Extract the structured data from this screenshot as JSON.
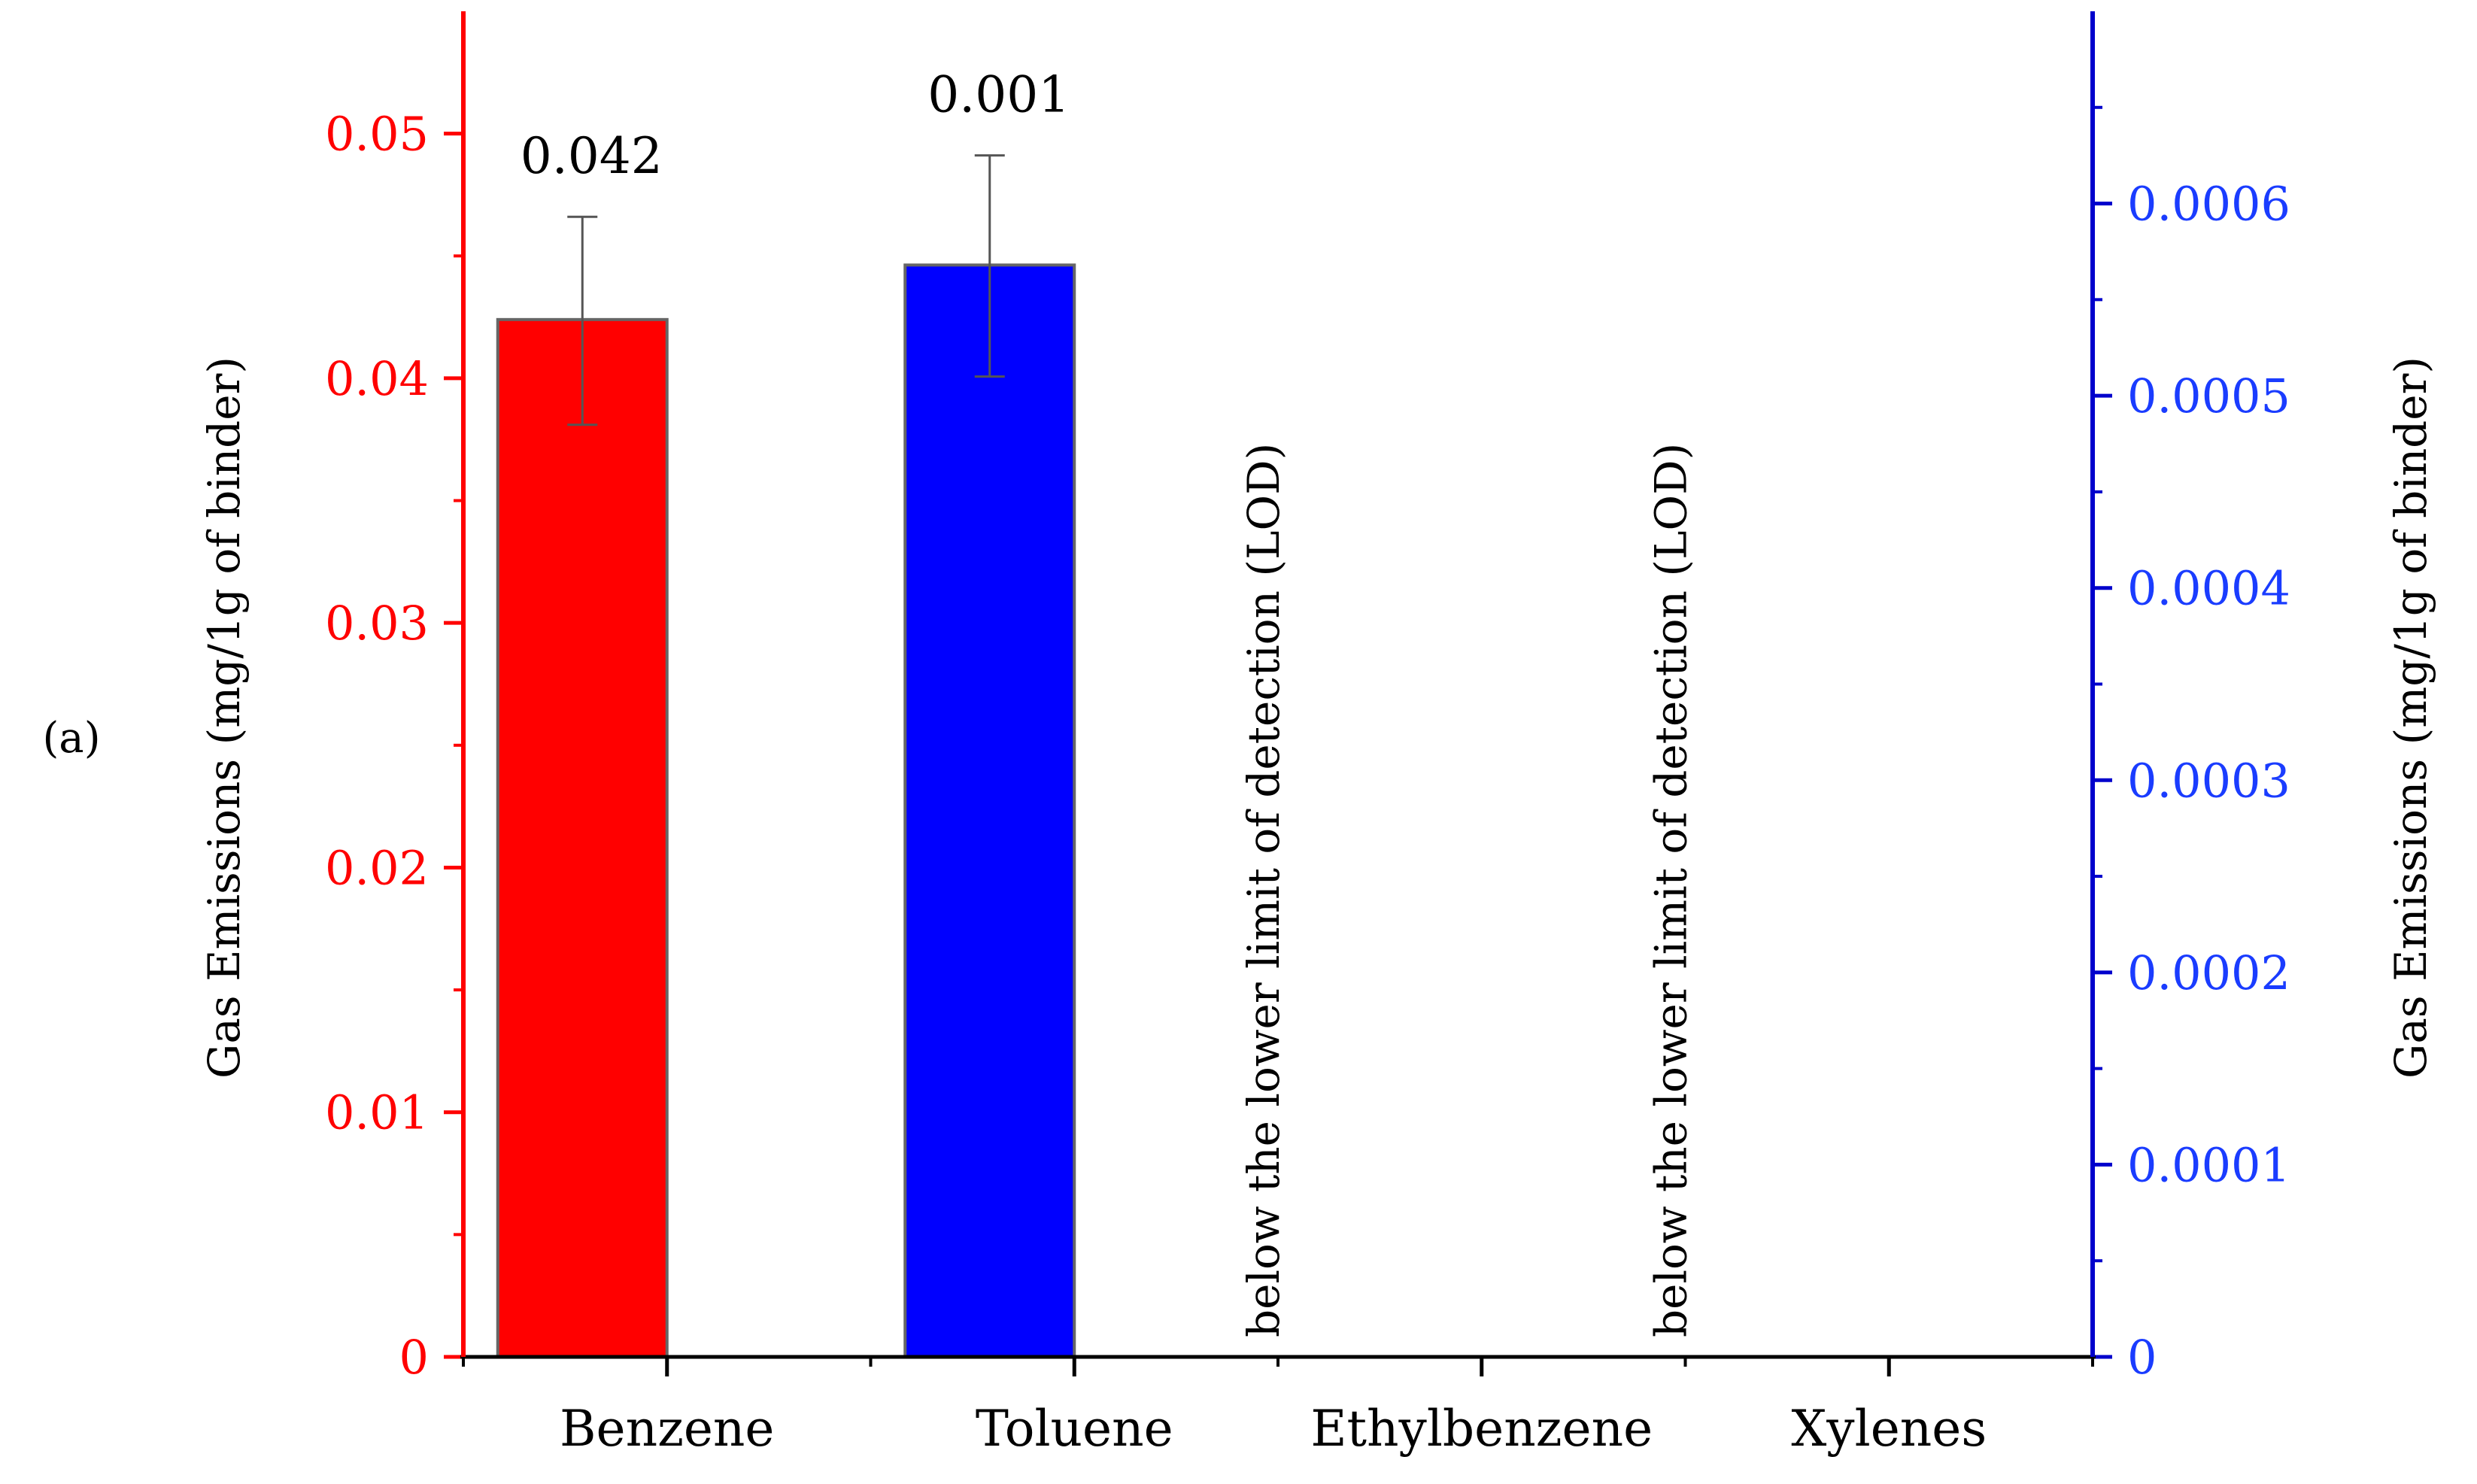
{
  "panel_label": "(a)",
  "chart_data": {
    "type": "bar",
    "categories": [
      "Benzene",
      "Toluene",
      "Ethylbenzene",
      "Xylenes"
    ],
    "left_axis": {
      "label": "Gas Emissions (mg/1g of binder)",
      "color": "#ff0000",
      "ylim": [
        0,
        0.055
      ],
      "ticks": [
        "0",
        "0.01",
        "0.02",
        "0.03",
        "0.04",
        "0.05"
      ],
      "tick_values": [
        0,
        0.01,
        0.02,
        0.03,
        0.04,
        0.05
      ]
    },
    "right_axis": {
      "label": "Gas Emissions (mg/1g of binder)",
      "line_color": "#0000cc",
      "tick_color": "#1a3cff",
      "ylim": [
        0,
        0.0007
      ],
      "ticks": [
        "0",
        "0.0001",
        "0.0002",
        "0.0003",
        "0.0004",
        "0.0005",
        "0.0006"
      ],
      "tick_values": [
        0,
        0.0001,
        0.0002,
        0.0003,
        0.0004,
        0.0005,
        0.0006
      ]
    },
    "bars": [
      {
        "category": "Benzene",
        "axis": "left",
        "value": 0.0424,
        "error_low": 0.0381,
        "error_high": 0.0466,
        "color": "#ff0000",
        "data_label": "0.042"
      },
      {
        "category": "Toluene",
        "axis": "right",
        "value": 0.000568,
        "error_low": 0.00051,
        "error_high": 0.000625,
        "color": "#0000ff",
        "data_label": "0.001"
      }
    ],
    "annotations": [
      {
        "category": "Ethylbenzene",
        "text": "below the lower limit of detection (LOD)"
      },
      {
        "category": "Xylenes",
        "text": "below the lower limit of detection (LOD)"
      }
    ]
  }
}
